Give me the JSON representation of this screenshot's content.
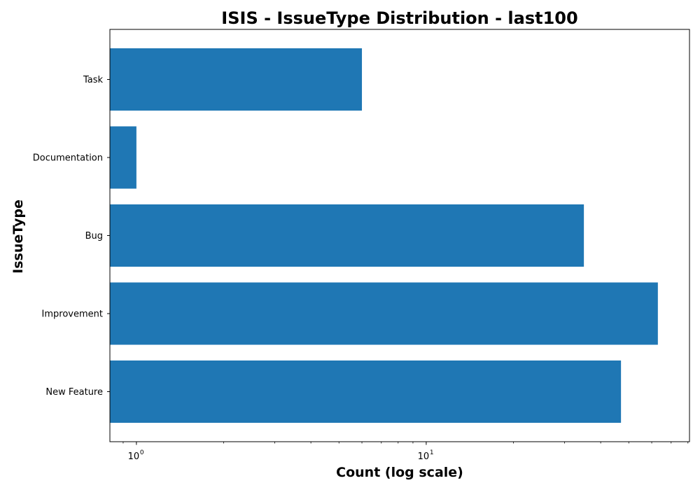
{
  "chart_data": {
    "type": "bar",
    "orientation": "horizontal",
    "title": "ISIS - IssueType Distribution - last100",
    "xlabel": "Count (log scale)",
    "ylabel": "IssueType",
    "xscale": "log",
    "xlim": [
      0.81,
      81
    ],
    "categories": [
      "New Feature",
      "Improvement",
      "Bug",
      "Documentation",
      "Task"
    ],
    "values": [
      47,
      63,
      35,
      1,
      6
    ],
    "x_major_ticks": [
      {
        "value": 1,
        "base": "10",
        "exp": "0"
      },
      {
        "value": 10,
        "base": "10",
        "exp": "1"
      }
    ],
    "bar_color": "#1f77b4",
    "grid": false,
    "legend": "none"
  }
}
